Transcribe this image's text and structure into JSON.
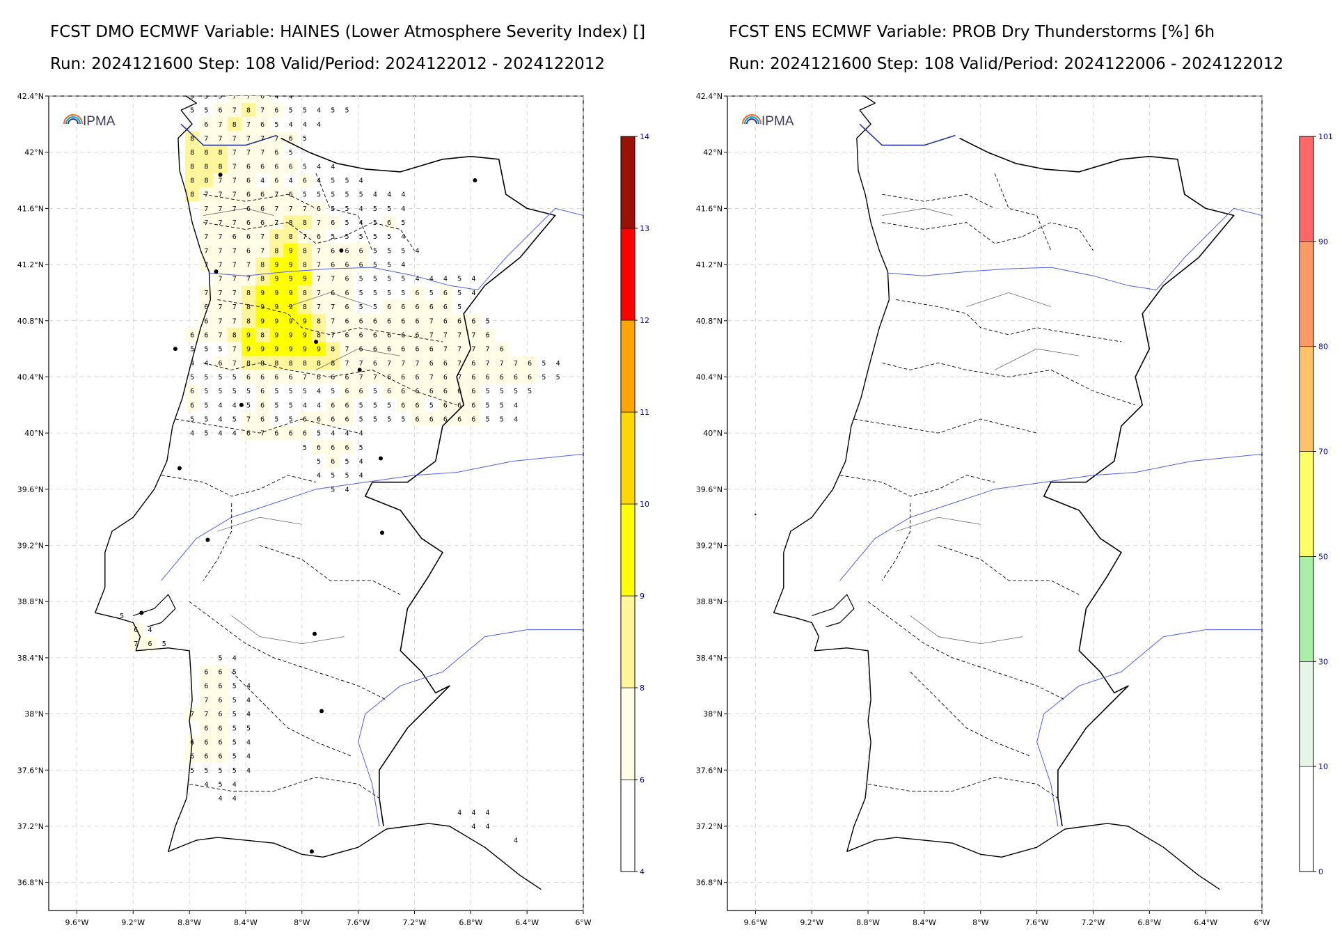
{
  "left": {
    "title_line1": "FCST DMO ECMWF Variable: HAINES (Lower Atmosphere Severity Index) []",
    "title_line2": "Run: 2024121600 Step: 108 Valid/Period: 2024122012 - 2024122012",
    "logo": "IPMA",
    "colorbar": {
      "levels": [
        "4",
        "6",
        "8",
        "9",
        "10",
        "11",
        "12",
        "13",
        "14"
      ],
      "colors": [
        "#ffffff",
        "#fffde6",
        "#fff59a",
        "#ffff00",
        "#ffd700",
        "#ffa500",
        "#ff0000",
        "#9a1206"
      ]
    }
  },
  "right": {
    "title_line1": "FCST ENS ECMWF Variable: PROB Dry Thunderstorms [%] 6h",
    "title_line2": "Run: 2024121600 Step: 108 Valid/Period: 2024122006 - 2024122012",
    "logo": "IPMA",
    "colorbar": {
      "levels": [
        "0",
        "10",
        "30",
        "50",
        "70",
        "80",
        "90",
        "101"
      ],
      "colors": [
        "#ffffff",
        "#e6f6e6",
        "#a8f0a8",
        "#ffff66",
        "#ffc266",
        "#ff9966",
        "#ff6666"
      ]
    }
  },
  "axes": {
    "lat_labels": [
      "42.4°N",
      "42°N",
      "41.6°N",
      "41.2°N",
      "40.8°N",
      "40.4°N",
      "40°N",
      "39.6°N",
      "39.2°N",
      "38.8°N",
      "38.4°N",
      "38°N",
      "37.6°N",
      "37.2°N",
      "36.8°N"
    ],
    "lon_labels": [
      "9.6°W",
      "9.2°W",
      "8.8°W",
      "8.4°W",
      "8°W",
      "7.6°W",
      "7.2°W",
      "6.8°W",
      "6.4°W",
      "6°W"
    ],
    "lat_range": [
      36.6,
      42.4
    ],
    "lon_range": [
      -9.8,
      -6.0
    ]
  },
  "haines_grid": [
    {
      "lat": 42.4,
      "start": -8.78,
      "vals": [
        5,
        5,
        5,
        7,
        7,
        6,
        4,
        4
      ]
    },
    {
      "lat": 42.3,
      "start": -8.78,
      "vals": [
        5,
        5,
        6,
        7,
        8,
        7,
        6,
        5,
        5,
        4,
        5,
        5
      ]
    },
    {
      "lat": 42.2,
      "start": -8.68,
      "vals": [
        6,
        7,
        8,
        7,
        6,
        5,
        4,
        4,
        4
      ]
    },
    {
      "lat": 42.1,
      "start": -8.78,
      "vals": [
        8,
        7,
        7,
        7,
        7,
        7,
        7,
        6,
        5
      ]
    },
    {
      "lat": 42.0,
      "start": -8.78,
      "vals": [
        8,
        8,
        8,
        7,
        7,
        7,
        6,
        5
      ]
    },
    {
      "lat": 41.9,
      "start": -8.78,
      "vals": [
        8,
        8,
        8,
        7,
        6,
        6,
        6,
        6,
        5,
        4,
        4
      ]
    },
    {
      "lat": 41.8,
      "start": -8.78,
      "vals": [
        8,
        8,
        7,
        7,
        6,
        4,
        6,
        4,
        6,
        4,
        5,
        5,
        4
      ]
    },
    {
      "lat": 41.7,
      "start": -8.78,
      "vals": [
        8,
        7,
        7,
        7,
        6,
        6,
        7,
        6,
        5,
        5,
        5,
        5,
        5,
        4,
        4,
        4
      ]
    },
    {
      "lat": 41.6,
      "start": -8.68,
      "vals": [
        7,
        7,
        7,
        6,
        6,
        7,
        7,
        7,
        6,
        5,
        5,
        4,
        5,
        5,
        4
      ]
    },
    {
      "lat": 41.5,
      "start": -8.68,
      "vals": [
        7,
        7,
        7,
        6,
        6,
        7,
        8,
        8,
        7,
        6,
        5,
        4,
        5,
        6,
        5
      ]
    },
    {
      "lat": 41.4,
      "start": -8.68,
      "vals": [
        7,
        7,
        6,
        6,
        7,
        8,
        8,
        7,
        6,
        5,
        5,
        5,
        5,
        5,
        4
      ]
    },
    {
      "lat": 41.3,
      "start": -8.68,
      "vals": [
        7,
        7,
        7,
        6,
        7,
        8,
        9,
        8,
        7,
        6,
        6,
        6,
        5,
        5,
        5,
        4
      ]
    },
    {
      "lat": 41.2,
      "start": -8.68,
      "vals": [
        7,
        7,
        7,
        7,
        8,
        9,
        9,
        8,
        7,
        6,
        6,
        6,
        5,
        5,
        4
      ]
    },
    {
      "lat": 41.1,
      "start": -8.58,
      "vals": [
        7,
        7,
        7,
        8,
        9,
        9,
        9,
        7,
        7,
        6,
        5,
        5,
        5,
        5,
        4,
        4,
        4,
        5,
        4
      ]
    },
    {
      "lat": 41.0,
      "start": -8.68,
      "vals": [
        7,
        7,
        7,
        8,
        9,
        9,
        9,
        8,
        7,
        6,
        6,
        5,
        5,
        5,
        5,
        6,
        5,
        6,
        5,
        4
      ]
    },
    {
      "lat": 40.9,
      "start": -8.68,
      "vals": [
        6,
        7,
        7,
        8,
        9,
        9,
        9,
        8,
        7,
        7,
        6,
        5,
        5,
        6,
        6,
        6,
        6,
        6,
        5
      ]
    },
    {
      "lat": 40.8,
      "start": -8.68,
      "vals": [
        6,
        7,
        7,
        8,
        9,
        9,
        9,
        9,
        8,
        7,
        6,
        6,
        6,
        6,
        6,
        6,
        7,
        6,
        6,
        6,
        5
      ]
    },
    {
      "lat": 40.7,
      "start": -8.78,
      "vals": [
        6,
        6,
        7,
        8,
        9,
        8,
        9,
        9,
        9,
        8,
        7,
        6,
        6,
        6,
        6,
        6,
        6,
        7,
        7,
        7,
        7,
        6
      ]
    },
    {
      "lat": 40.6,
      "start": -8.78,
      "vals": [
        5,
        5,
        5,
        7,
        9,
        9,
        9,
        9,
        9,
        9,
        8,
        7,
        6,
        6,
        6,
        6,
        6,
        6,
        7,
        7,
        7,
        7,
        6
      ]
    },
    {
      "lat": 40.5,
      "start": -8.78,
      "vals": [
        4,
        4,
        6,
        7,
        8,
        8,
        8,
        8,
        8,
        8,
        8,
        7,
        7,
        6,
        7,
        7,
        7,
        6,
        6,
        7,
        6,
        7,
        7,
        7,
        6,
        5,
        4
      ]
    },
    {
      "lat": 40.4,
      "start": -8.78,
      "vals": [
        5,
        5,
        5,
        5,
        6,
        6,
        6,
        6,
        7,
        6,
        6,
        6,
        7,
        7,
        6,
        6,
        6,
        7,
        6,
        7,
        6,
        6,
        6,
        6,
        6,
        5,
        5
      ]
    },
    {
      "lat": 40.3,
      "start": -8.78,
      "vals": [
        6,
        5,
        5,
        5,
        5,
        6,
        5,
        5,
        5,
        4,
        5,
        6,
        6,
        5,
        6,
        6,
        6,
        6,
        6,
        6,
        6,
        5,
        5,
        5,
        5
      ]
    },
    {
      "lat": 40.2,
      "start": -8.78,
      "vals": [
        6,
        5,
        4,
        4,
        5,
        6,
        5,
        5,
        4,
        4,
        6,
        6,
        5,
        5,
        5,
        6,
        6,
        5,
        6,
        6,
        6,
        5,
        5,
        4
      ]
    },
    {
      "lat": 40.1,
      "start": -8.78,
      "vals": [
        5,
        5,
        4,
        5,
        7,
        6,
        5,
        5,
        6,
        6,
        6,
        6,
        5,
        5,
        5,
        5,
        6,
        6,
        6,
        6,
        6,
        5,
        5,
        4
      ]
    },
    {
      "lat": 40.0,
      "start": -8.78,
      "vals": [
        4,
        5,
        4,
        4,
        6,
        7,
        6,
        6,
        6,
        5,
        4,
        4,
        4
      ]
    },
    {
      "lat": 39.9,
      "start": -7.98,
      "vals": [
        5,
        6,
        6,
        6,
        5
      ]
    },
    {
      "lat": 39.8,
      "start": -7.88,
      "vals": [
        5,
        6,
        5,
        4
      ]
    },
    {
      "lat": 39.7,
      "start": -7.88,
      "vals": [
        4,
        5,
        5,
        4
      ]
    },
    {
      "lat": 39.6,
      "start": -7.78,
      "vals": [
        5,
        4
      ]
    },
    {
      "lat": 38.7,
      "start": -9.28,
      "vals": [
        5
      ]
    },
    {
      "lat": 38.6,
      "start": -9.18,
      "vals": [
        6,
        4
      ]
    },
    {
      "lat": 38.5,
      "start": -9.18,
      "vals": [
        7,
        6,
        5
      ]
    },
    {
      "lat": 38.4,
      "start": -8.58,
      "vals": [
        5,
        4
      ]
    },
    {
      "lat": 38.3,
      "start": -8.68,
      "vals": [
        6,
        6,
        5
      ]
    },
    {
      "lat": 38.2,
      "start": -8.68,
      "vals": [
        6,
        6,
        5,
        4
      ]
    },
    {
      "lat": 38.1,
      "start": -8.68,
      "vals": [
        7,
        6,
        5,
        4
      ]
    },
    {
      "lat": 38.0,
      "start": -8.78,
      "vals": [
        7,
        7,
        6,
        5,
        4
      ]
    },
    {
      "lat": 37.9,
      "start": -8.68,
      "vals": [
        6,
        6,
        5,
        5
      ]
    },
    {
      "lat": 37.8,
      "start": -8.78,
      "vals": [
        6,
        6,
        6,
        5,
        4
      ]
    },
    {
      "lat": 37.7,
      "start": -8.78,
      "vals": [
        6,
        6,
        6,
        5,
        4
      ]
    },
    {
      "lat": 37.6,
      "start": -8.78,
      "vals": [
        5,
        5,
        5,
        5,
        4
      ]
    },
    {
      "lat": 37.5,
      "start": -8.68,
      "vals": [
        4,
        5,
        4
      ]
    },
    {
      "lat": 37.4,
      "start": -8.58,
      "vals": [
        4,
        4
      ]
    },
    {
      "lat": 37.3,
      "start": -6.88,
      "vals": [
        4,
        4,
        4
      ]
    },
    {
      "lat": 37.2,
      "start": -6.78,
      "vals": [
        4,
        4
      ]
    },
    {
      "lat": 37.1,
      "start": -6.48,
      "vals": [
        4
      ]
    }
  ]
}
